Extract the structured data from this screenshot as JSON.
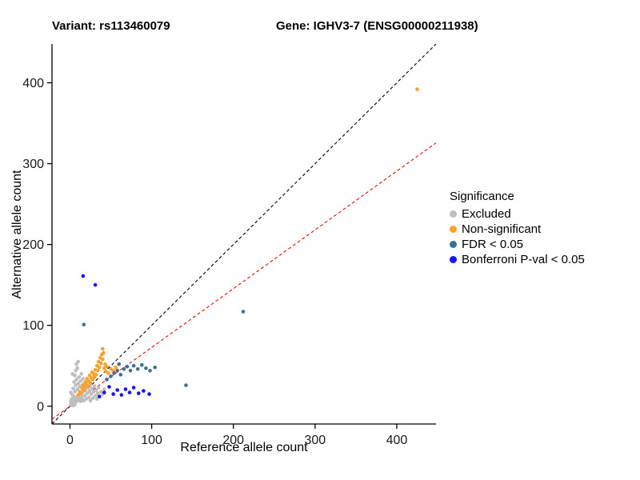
{
  "titles": {
    "variant": "Variant: rs113460079",
    "gene": "Gene: IGHV3-7 (ENSG00000211938)"
  },
  "axes": {
    "x_label": "Reference allele count",
    "y_label": "Alternative allele count"
  },
  "legend": {
    "title": "Significance"
  },
  "chart_data": {
    "type": "scatter",
    "title": "Variant: rs113460079 — Gene: IGHV3-7 (ENSG00000211938)",
    "xlabel": "Reference allele count",
    "ylabel": "Alternative allele count",
    "xlim": [
      -22,
      448
    ],
    "ylim": [
      -22,
      448
    ],
    "x_ticks": [
      0,
      100,
      200,
      300,
      400
    ],
    "y_ticks": [
      0,
      100,
      200,
      300,
      400
    ],
    "grid": false,
    "legend_position": "right",
    "point_radius": 2.3,
    "series": [
      {
        "name": "Excluded",
        "color": "#BEBEBE",
        "points": [
          [
            1,
            2
          ],
          [
            2,
            5
          ],
          [
            2,
            9
          ],
          [
            3,
            3
          ],
          [
            3,
            14
          ],
          [
            4,
            7
          ],
          [
            4,
            22
          ],
          [
            5,
            4
          ],
          [
            5,
            12
          ],
          [
            5,
            30
          ],
          [
            6,
            8
          ],
          [
            6,
            18
          ],
          [
            6,
            38
          ],
          [
            7,
            5
          ],
          [
            7,
            26
          ],
          [
            7,
            44
          ],
          [
            8,
            10
          ],
          [
            8,
            33
          ],
          [
            8,
            52
          ],
          [
            9,
            7
          ],
          [
            9,
            21
          ],
          [
            9,
            47
          ],
          [
            10,
            13
          ],
          [
            10,
            28
          ],
          [
            10,
            55
          ],
          [
            11,
            9
          ],
          [
            11,
            36
          ],
          [
            12,
            16
          ],
          [
            12,
            24
          ],
          [
            13,
            6
          ],
          [
            13,
            31
          ],
          [
            14,
            12
          ],
          [
            14,
            40
          ],
          [
            15,
            9
          ],
          [
            15,
            26
          ],
          [
            16,
            18
          ],
          [
            16,
            34
          ],
          [
            17,
            7
          ],
          [
            17,
            23
          ],
          [
            18,
            13
          ],
          [
            18,
            29
          ],
          [
            19,
            20
          ],
          [
            20,
            9
          ],
          [
            20,
            26
          ],
          [
            21,
            16
          ],
          [
            22,
            23
          ],
          [
            23,
            11
          ],
          [
            24,
            19
          ],
          [
            25,
            7
          ],
          [
            25,
            27
          ],
          [
            26,
            15
          ],
          [
            27,
            22
          ],
          [
            28,
            10
          ],
          [
            29,
            18
          ],
          [
            30,
            25
          ],
          [
            31,
            13
          ],
          [
            32,
            20
          ],
          [
            33,
            9
          ],
          [
            34,
            16
          ],
          [
            35,
            23
          ],
          [
            36,
            12
          ],
          [
            38,
            18
          ],
          [
            40,
            15
          ],
          [
            42,
            21
          ],
          [
            2,
            1
          ],
          [
            4,
            1
          ],
          [
            6,
            2
          ],
          [
            1,
            6
          ],
          [
            1,
            17
          ],
          [
            3,
            40
          ]
        ]
      },
      {
        "name": "Non-significant",
        "color": "#F9A22B",
        "points": [
          [
            10,
            14
          ],
          [
            12,
            18
          ],
          [
            14,
            16
          ],
          [
            15,
            22
          ],
          [
            16,
            26
          ],
          [
            17,
            20
          ],
          [
            18,
            24
          ],
          [
            19,
            30
          ],
          [
            20,
            27
          ],
          [
            21,
            34
          ],
          [
            22,
            25
          ],
          [
            23,
            31
          ],
          [
            24,
            38
          ],
          [
            25,
            29
          ],
          [
            26,
            35
          ],
          [
            27,
            42
          ],
          [
            28,
            33
          ],
          [
            29,
            40
          ],
          [
            30,
            36
          ],
          [
            31,
            45
          ],
          [
            32,
            39
          ],
          [
            33,
            50
          ],
          [
            34,
            44
          ],
          [
            35,
            55
          ],
          [
            36,
            48
          ],
          [
            37,
            60
          ],
          [
            38,
            53
          ],
          [
            39,
            64
          ],
          [
            40,
            58
          ],
          [
            40,
            71
          ],
          [
            41,
            66
          ],
          [
            42,
            47
          ],
          [
            43,
            52
          ],
          [
            44,
            43
          ],
          [
            45,
            49
          ],
          [
            47,
            41
          ],
          [
            50,
            46
          ],
          [
            53,
            44
          ],
          [
            56,
            48
          ],
          [
            425,
            392
          ]
        ]
      },
      {
        "name": "FDR < 0.05",
        "color": "#38709B",
        "points": [
          [
            17,
            101
          ],
          [
            45,
            33
          ],
          [
            50,
            37
          ],
          [
            54,
            41
          ],
          [
            58,
            44
          ],
          [
            60,
            52
          ],
          [
            62,
            39
          ],
          [
            66,
            46
          ],
          [
            70,
            49
          ],
          [
            74,
            44
          ],
          [
            78,
            50
          ],
          [
            83,
            46
          ],
          [
            88,
            51
          ],
          [
            93,
            47
          ],
          [
            98,
            44
          ],
          [
            104,
            48
          ],
          [
            142,
            26
          ],
          [
            212,
            117
          ]
        ]
      },
      {
        "name": "Bonferroni P-val < 0.05",
        "color": "#1414FF",
        "points": [
          [
            16,
            161
          ],
          [
            31,
            150
          ],
          [
            36,
            12
          ],
          [
            42,
            17
          ],
          [
            48,
            24
          ],
          [
            53,
            15
          ],
          [
            58,
            20
          ],
          [
            63,
            14
          ],
          [
            68,
            21
          ],
          [
            73,
            17
          ],
          [
            78,
            23
          ],
          [
            84,
            16
          ],
          [
            90,
            19
          ],
          [
            97,
            15
          ]
        ]
      }
    ],
    "lines": [
      {
        "name": "identity-line",
        "slope": 1,
        "intercept": 0,
        "color": "#000000",
        "dash": "4,3"
      },
      {
        "name": "regression-line",
        "slope": 0.727,
        "intercept": 0,
        "color": "#FF0000",
        "dash": "4,3"
      }
    ]
  }
}
